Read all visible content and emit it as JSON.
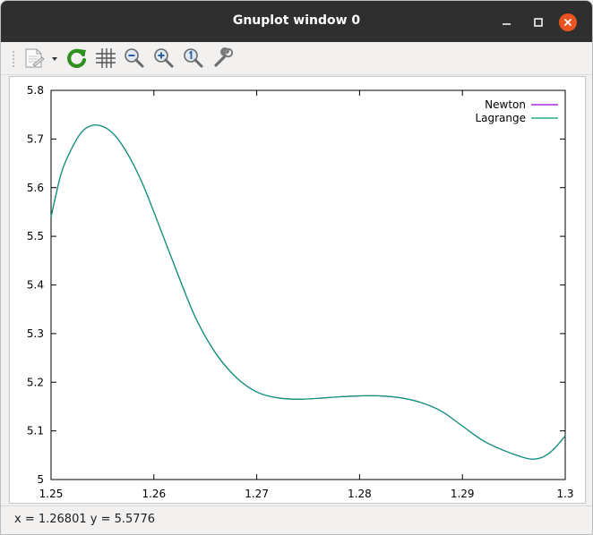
{
  "window": {
    "title": "Gnuplot window 0"
  },
  "toolbar": {
    "items": [
      {
        "name": "copy-export-button",
        "icon": "document-icon"
      },
      {
        "name": "replot-button",
        "icon": "refresh-icon"
      },
      {
        "name": "grid-button",
        "icon": "grid-icon"
      },
      {
        "name": "zoom-previous-button",
        "icon": "zoom-out-icon"
      },
      {
        "name": "zoom-next-button",
        "icon": "zoom-in-icon"
      },
      {
        "name": "autoscale-button",
        "icon": "zoom-fit-icon"
      },
      {
        "name": "settings-button",
        "icon": "wrench-icon"
      }
    ]
  },
  "status": {
    "text": "x = 1.26801 y = 5.5776"
  },
  "chart_data": {
    "type": "line",
    "title": "",
    "xlabel": "",
    "ylabel": "",
    "xlim": [
      1.25,
      1.3
    ],
    "ylim": [
      5.0,
      5.8
    ],
    "grid": false,
    "legend_position": "top-right",
    "x_ticks": [
      "1.25",
      "1.26",
      "1.27",
      "1.28",
      "1.29",
      "1.3"
    ],
    "y_ticks": [
      "5",
      "5.1",
      "5.2",
      "5.3",
      "5.4",
      "5.5",
      "5.6",
      "5.7",
      "5.8"
    ],
    "series": [
      {
        "name": "Newton",
        "color": "#9400d3",
        "x": [
          1.25,
          1.251,
          1.252,
          1.253,
          1.254,
          1.255,
          1.256,
          1.257,
          1.258,
          1.259,
          1.26,
          1.262,
          1.264,
          1.266,
          1.268,
          1.27,
          1.272,
          1.274,
          1.276,
          1.278,
          1.28,
          1.282,
          1.284,
          1.286,
          1.288,
          1.29,
          1.292,
          1.294,
          1.296,
          1.297,
          1.298,
          1.299,
          1.3
        ],
        "y": [
          5.54,
          5.63,
          5.68,
          5.715,
          5.728,
          5.726,
          5.712,
          5.685,
          5.648,
          5.603,
          5.55,
          5.44,
          5.335,
          5.26,
          5.21,
          5.18,
          5.168,
          5.165,
          5.167,
          5.17,
          5.172,
          5.172,
          5.168,
          5.158,
          5.14,
          5.11,
          5.08,
          5.06,
          5.045,
          5.042,
          5.048,
          5.065,
          5.09
        ]
      },
      {
        "name": "Lagrange",
        "color": "#009e73",
        "x": [
          1.25,
          1.251,
          1.252,
          1.253,
          1.254,
          1.255,
          1.256,
          1.257,
          1.258,
          1.259,
          1.26,
          1.262,
          1.264,
          1.266,
          1.268,
          1.27,
          1.272,
          1.274,
          1.276,
          1.278,
          1.28,
          1.282,
          1.284,
          1.286,
          1.288,
          1.29,
          1.292,
          1.294,
          1.296,
          1.297,
          1.298,
          1.299,
          1.3
        ],
        "y": [
          5.54,
          5.63,
          5.68,
          5.715,
          5.728,
          5.726,
          5.712,
          5.685,
          5.648,
          5.603,
          5.55,
          5.44,
          5.335,
          5.26,
          5.21,
          5.18,
          5.168,
          5.165,
          5.167,
          5.17,
          5.172,
          5.172,
          5.168,
          5.158,
          5.14,
          5.11,
          5.08,
          5.06,
          5.045,
          5.042,
          5.048,
          5.065,
          5.09
        ]
      }
    ]
  }
}
